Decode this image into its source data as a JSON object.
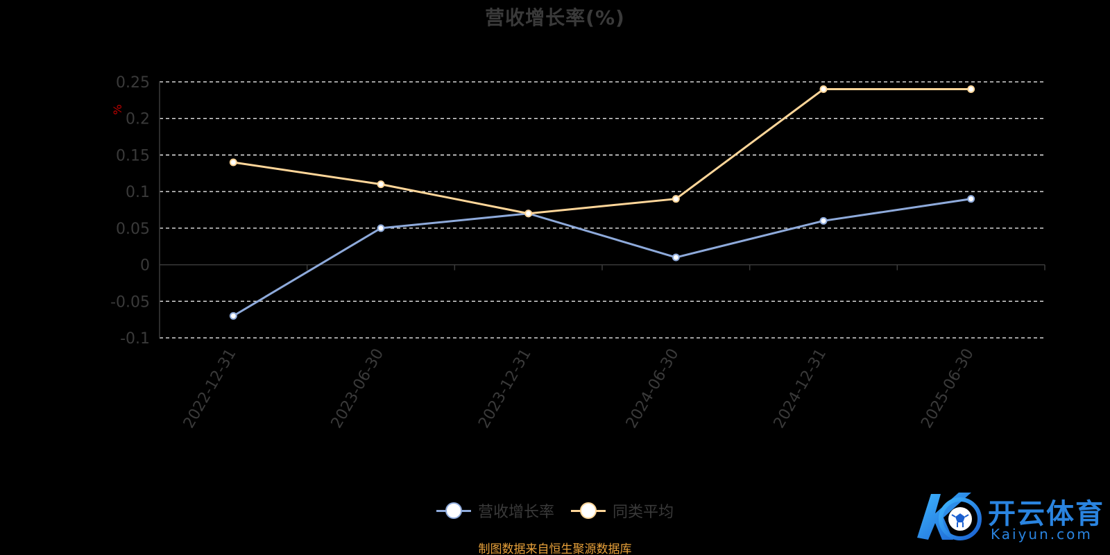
{
  "colors": {
    "background": "#000000",
    "grid": "#ffffff",
    "axis": "#3a3a3a",
    "tick_text": "#3a3a3a",
    "ylabel": "#c00000",
    "source": "#e8a13a",
    "watermark": "#2a84e0"
  },
  "chart_data": {
    "type": "line",
    "title": "营收增长率(%)",
    "xlabel": "",
    "ylabel": "%",
    "categories": [
      "2022-12-31",
      "2023-06-30",
      "2023-12-31",
      "2024-06-30",
      "2024-12-31",
      "2025-06-30"
    ],
    "ylim": [
      -0.1,
      0.25
    ],
    "yticks": [
      "0.25",
      "0.2",
      "0.15",
      "0.1",
      "0.05",
      "0",
      "-0.05",
      "-0.1"
    ],
    "ytick_values": [
      0.25,
      0.2,
      0.15,
      0.1,
      0.05,
      0,
      -0.05,
      -0.1
    ],
    "grid": true,
    "grid_style": "dashed",
    "legend_position": "bottom",
    "series": [
      {
        "name": "营收增长率",
        "color": "#8eaadb",
        "values": [
          -0.07,
          0.05,
          0.07,
          0.01,
          0.06,
          0.09
        ]
      },
      {
        "name": "同类平均",
        "color": "#ffd699",
        "values": [
          0.14,
          0.11,
          0.07,
          0.09,
          0.24,
          0.24
        ]
      }
    ]
  },
  "legend": {
    "items": [
      {
        "label": "营收增长率",
        "color": "#8eaadb"
      },
      {
        "label": "同类平均",
        "color": "#ffd699"
      }
    ]
  },
  "footer": {
    "source": "制图数据来自恒生聚源数据库"
  },
  "watermark": {
    "brand": "开云体育",
    "url": "Kaiyun.com",
    "logo_icon": "soccer-ball-k-logo"
  }
}
